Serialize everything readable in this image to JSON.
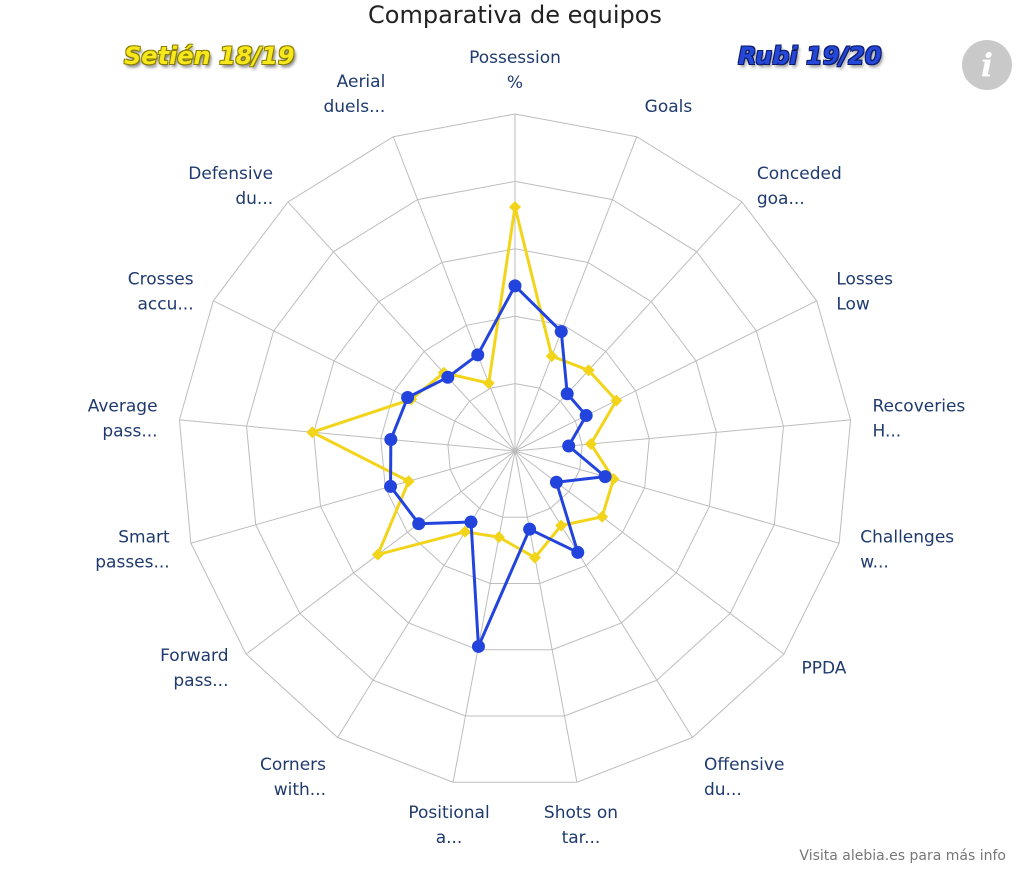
{
  "chart_data": {
    "type": "radar",
    "title": "Comparativa de equipos",
    "axes": [
      [
        "Possession",
        "%"
      ],
      [
        "Goals"
      ],
      [
        "Conceded",
        "goa..."
      ],
      [
        "Losses",
        "Low"
      ],
      [
        "Recoveries",
        "H..."
      ],
      [
        "Challenges",
        "w..."
      ],
      [
        "PPDA"
      ],
      [
        "Offensive",
        "du..."
      ],
      [
        "Shots on",
        "tar..."
      ],
      [
        "Positional",
        "a..."
      ],
      [
        "Corners",
        "with..."
      ],
      [
        "Forward",
        "pass..."
      ],
      [
        "Smart",
        "passes..."
      ],
      [
        "Average",
        "pass..."
      ],
      [
        "Crosses",
        "accu..."
      ],
      [
        "Defensive",
        "du..."
      ],
      [
        "Aerial",
        "duels..."
      ]
    ],
    "rlim": [
      0,
      5
    ],
    "grid": true,
    "series": [
      {
        "name": "Setién 18/19",
        "color": "#f2d41a",
        "marker": "diamond",
        "values": [
          3.62,
          1.51,
          1.62,
          1.68,
          1.13,
          1.52,
          1.62,
          1.3,
          1.61,
          1.3,
          1.41,
          2.55,
          1.64,
          3.02,
          1.72,
          1.57,
          1.08
        ]
      },
      {
        "name": "Rubi 19/20",
        "color": "#2244dd",
        "marker": "circle",
        "values": [
          2.45,
          1.9,
          1.15,
          1.18,
          0.8,
          1.39,
          0.77,
          1.77,
          1.18,
          2.95,
          1.24,
          1.79,
          1.92,
          1.85,
          1.78,
          1.48,
          1.53
        ]
      }
    ]
  },
  "footer": "Visita alebia.es para más info",
  "info_icon": "info-icon"
}
